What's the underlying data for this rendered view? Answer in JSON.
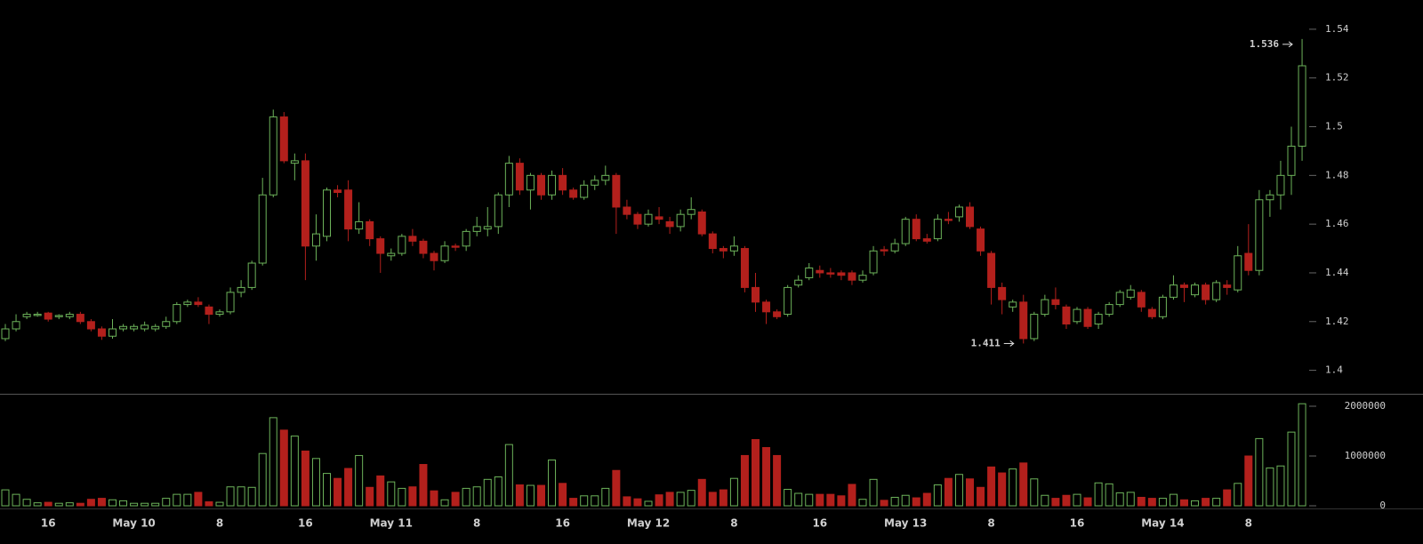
{
  "chart_data": {
    "type": "candlestick",
    "categories": [
      null,
      null,
      null,
      null,
      "16",
      null,
      null,
      null,
      null,
      null,
      null,
      null,
      "May 10",
      null,
      null,
      null,
      null,
      null,
      null,
      null,
      "8",
      null,
      null,
      null,
      null,
      null,
      null,
      null,
      "16",
      null,
      null,
      null,
      null,
      null,
      null,
      null,
      "May 11",
      null,
      null,
      null,
      null,
      null,
      null,
      null,
      "8",
      null,
      null,
      null,
      null,
      null,
      null,
      null,
      "16",
      null,
      null,
      null,
      null,
      null,
      null,
      null,
      "May 12",
      null,
      null,
      null,
      null,
      null,
      null,
      null,
      "8",
      null,
      null,
      null,
      null,
      null,
      null,
      null,
      "16",
      null,
      null,
      null,
      null,
      null,
      null,
      null,
      "May 13",
      null,
      null,
      null,
      null,
      null,
      null,
      null,
      "8",
      null,
      null,
      null,
      null,
      null,
      null,
      null,
      "16",
      null,
      null,
      null,
      null,
      null,
      null,
      null,
      "May 14",
      null,
      null,
      null,
      null,
      null,
      null,
      null,
      "8",
      null,
      null,
      null,
      null,
      null
    ],
    "open": [
      1.413,
      1.417,
      1.422,
      1.4225,
      1.4235,
      1.422,
      1.422,
      1.423,
      1.42,
      1.417,
      1.414,
      1.417,
      1.417,
      1.417,
      1.417,
      1.418,
      1.42,
      1.427,
      1.428,
      1.426,
      1.423,
      1.424,
      1.432,
      1.434,
      1.444,
      1.472,
      1.504,
      1.485,
      1.486,
      1.451,
      1.455,
      1.474,
      1.474,
      1.458,
      1.461,
      1.454,
      1.447,
      1.448,
      1.455,
      1.453,
      1.448,
      1.445,
      1.451,
      1.451,
      1.457,
      1.458,
      1.459,
      1.472,
      1.485,
      1.474,
      1.48,
      1.472,
      1.48,
      1.474,
      1.471,
      1.476,
      1.478,
      1.48,
      1.467,
      1.464,
      1.46,
      1.463,
      1.461,
      1.459,
      1.464,
      1.465,
      1.456,
      1.45,
      1.449,
      1.45,
      1.434,
      1.428,
      1.424,
      1.423,
      1.435,
      1.438,
      1.441,
      1.44,
      1.44,
      1.44,
      1.437,
      1.44,
      1.4495,
      1.449,
      1.452,
      1.462,
      1.454,
      1.454,
      1.462,
      1.463,
      1.467,
      1.458,
      1.448,
      1.434,
      1.426,
      1.428,
      1.413,
      1.423,
      1.429,
      1.426,
      1.42,
      1.425,
      1.419,
      1.423,
      1.427,
      1.43,
      1.432,
      1.425,
      1.422,
      1.43,
      1.435,
      1.431,
      1.435,
      1.429,
      1.435,
      1.433,
      1.448,
      1.441,
      1.47,
      1.472,
      1.48,
      1.492
    ],
    "high": [
      1.419,
      1.423,
      1.424,
      1.424,
      1.424,
      1.423,
      1.424,
      1.424,
      1.421,
      1.418,
      1.421,
      1.419,
      1.419,
      1.42,
      1.419,
      1.422,
      1.428,
      1.429,
      1.43,
      1.427,
      1.425,
      1.434,
      1.437,
      1.445,
      1.479,
      1.507,
      1.506,
      1.489,
      1.489,
      1.464,
      1.475,
      1.476,
      1.478,
      1.469,
      1.462,
      1.455,
      1.45,
      1.456,
      1.458,
      1.454,
      1.449,
      1.453,
      1.452,
      1.458,
      1.463,
      1.467,
      1.473,
      1.488,
      1.487,
      1.481,
      1.481,
      1.482,
      1.483,
      1.475,
      1.478,
      1.48,
      1.484,
      1.481,
      1.47,
      1.465,
      1.466,
      1.467,
      1.463,
      1.466,
      1.471,
      1.466,
      1.457,
      1.451,
      1.455,
      1.451,
      1.44,
      1.429,
      1.425,
      1.435,
      1.439,
      1.444,
      1.443,
      1.442,
      1.441,
      1.441,
      1.441,
      1.451,
      1.451,
      1.454,
      1.463,
      1.464,
      1.456,
      1.464,
      1.465,
      1.468,
      1.469,
      1.459,
      1.449,
      1.436,
      1.429,
      1.431,
      1.424,
      1.431,
      1.434,
      1.427,
      1.426,
      1.426,
      1.424,
      1.428,
      1.433,
      1.435,
      1.433,
      1.426,
      1.431,
      1.439,
      1.436,
      1.436,
      1.436,
      1.437,
      1.437,
      1.451,
      1.46,
      1.474,
      1.474,
      1.486,
      1.5,
      1.536
    ],
    "low": [
      1.412,
      1.416,
      1.421,
      1.422,
      1.42,
      1.421,
      1.421,
      1.419,
      1.416,
      1.4125,
      1.413,
      1.416,
      1.416,
      1.416,
      1.416,
      1.417,
      1.419,
      1.426,
      1.426,
      1.419,
      1.422,
      1.423,
      1.43,
      1.433,
      1.443,
      1.471,
      1.485,
      1.478,
      1.437,
      1.445,
      1.453,
      1.471,
      1.453,
      1.456,
      1.451,
      1.44,
      1.445,
      1.447,
      1.451,
      1.446,
      1.441,
      1.444,
      1.449,
      1.449,
      1.455,
      1.455,
      1.456,
      1.467,
      1.472,
      1.466,
      1.47,
      1.47,
      1.472,
      1.47,
      1.47,
      1.474,
      1.476,
      1.456,
      1.462,
      1.458,
      1.459,
      1.46,
      1.456,
      1.457,
      1.462,
      1.455,
      1.448,
      1.446,
      1.447,
      1.432,
      1.424,
      1.419,
      1.421,
      1.422,
      1.434,
      1.437,
      1.438,
      1.438,
      1.437,
      1.435,
      1.436,
      1.439,
      1.447,
      1.448,
      1.451,
      1.453,
      1.452,
      1.453,
      1.46,
      1.461,
      1.458,
      1.447,
      1.427,
      1.423,
      1.424,
      1.411,
      1.412,
      1.422,
      1.425,
      1.417,
      1.419,
      1.417,
      1.417,
      1.422,
      1.426,
      1.429,
      1.424,
      1.421,
      1.421,
      1.429,
      1.428,
      1.43,
      1.427,
      1.428,
      1.431,
      1.432,
      1.439,
      1.439,
      1.463,
      1.466,
      1.472,
      1.486
    ],
    "close": [
      1.417,
      1.42,
      1.423,
      1.423,
      1.421,
      1.4225,
      1.423,
      1.42,
      1.417,
      1.414,
      1.417,
      1.418,
      1.418,
      1.4185,
      1.418,
      1.42,
      1.427,
      1.428,
      1.427,
      1.423,
      1.424,
      1.432,
      1.434,
      1.444,
      1.472,
      1.504,
      1.486,
      1.486,
      1.451,
      1.456,
      1.474,
      1.473,
      1.458,
      1.461,
      1.454,
      1.448,
      1.448,
      1.455,
      1.453,
      1.448,
      1.445,
      1.451,
      1.4505,
      1.457,
      1.459,
      1.459,
      1.472,
      1.485,
      1.474,
      1.48,
      1.472,
      1.48,
      1.474,
      1.471,
      1.476,
      1.478,
      1.48,
      1.467,
      1.464,
      1.46,
      1.464,
      1.462,
      1.459,
      1.464,
      1.466,
      1.456,
      1.45,
      1.449,
      1.451,
      1.434,
      1.428,
      1.424,
      1.422,
      1.434,
      1.437,
      1.442,
      1.44,
      1.4395,
      1.439,
      1.437,
      1.439,
      1.449,
      1.449,
      1.452,
      1.462,
      1.454,
      1.453,
      1.462,
      1.4615,
      1.467,
      1.459,
      1.449,
      1.434,
      1.429,
      1.428,
      1.413,
      1.423,
      1.429,
      1.427,
      1.419,
      1.425,
      1.418,
      1.423,
      1.427,
      1.432,
      1.433,
      1.426,
      1.422,
      1.43,
      1.435,
      1.434,
      1.435,
      1.429,
      1.436,
      1.434,
      1.447,
      1.441,
      1.47,
      1.472,
      1.48,
      1.492,
      1.525
    ],
    "volume": [
      320000,
      230000,
      130000,
      60000,
      70000,
      50000,
      60000,
      50000,
      130000,
      150000,
      120000,
      100000,
      50000,
      50000,
      50000,
      150000,
      230000,
      230000,
      270000,
      80000,
      70000,
      380000,
      380000,
      370000,
      1050000,
      1770000,
      1520000,
      1400000,
      1100000,
      950000,
      650000,
      550000,
      750000,
      1010000,
      370000,
      600000,
      480000,
      350000,
      380000,
      830000,
      300000,
      120000,
      270000,
      350000,
      380000,
      530000,
      580000,
      1230000,
      420000,
      410000,
      410000,
      920000,
      450000,
      150000,
      200000,
      200000,
      350000,
      710000,
      180000,
      140000,
      90000,
      220000,
      270000,
      270000,
      310000,
      530000,
      270000,
      320000,
      550000,
      1010000,
      1330000,
      1170000,
      1010000,
      330000,
      250000,
      230000,
      230000,
      230000,
      200000,
      430000,
      130000,
      530000,
      110000,
      170000,
      210000,
      160000,
      250000,
      420000,
      550000,
      630000,
      540000,
      370000,
      780000,
      660000,
      740000,
      860000,
      540000,
      210000,
      150000,
      210000,
      230000,
      160000,
      460000,
      440000,
      260000,
      270000,
      170000,
      150000,
      150000,
      230000,
      120000,
      100000,
      150000,
      150000,
      320000,
      450000,
      1000000,
      1350000,
      760000,
      800000,
      1480000,
      2050000
    ],
    "ylim": [
      1.39,
      1.552
    ],
    "yticks": [
      1.4,
      1.42,
      1.44,
      1.46,
      1.48,
      1.5,
      1.52,
      1.54
    ],
    "volume_ylim": [
      0,
      2200000
    ],
    "volume_yticks": [
      0,
      1000000,
      2000000
    ],
    "up_color": "#6db35a",
    "down_color": "#b3201c",
    "high_label": 1.536,
    "low_label": 1.411
  }
}
